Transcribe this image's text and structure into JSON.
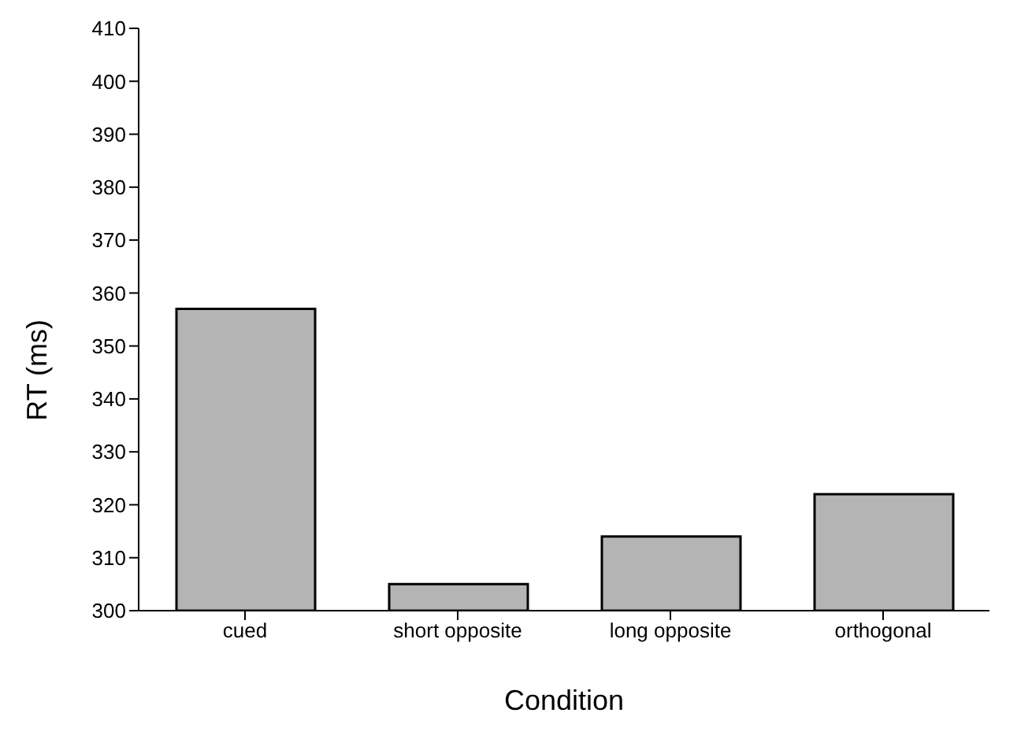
{
  "chart_data": {
    "type": "bar",
    "xlabel": "Condition",
    "ylabel": "RT (ms)",
    "categories": [
      "cued",
      "short opposite",
      "long opposite",
      "orthogonal"
    ],
    "values": [
      357,
      305,
      314,
      322
    ],
    "color": "#b4b4b4",
    "ylim": [
      300,
      410
    ],
    "yticks": [
      300,
      310,
      320,
      330,
      340,
      350,
      360,
      370,
      380,
      390,
      400,
      410
    ],
    "grid": false,
    "legend": false
  }
}
